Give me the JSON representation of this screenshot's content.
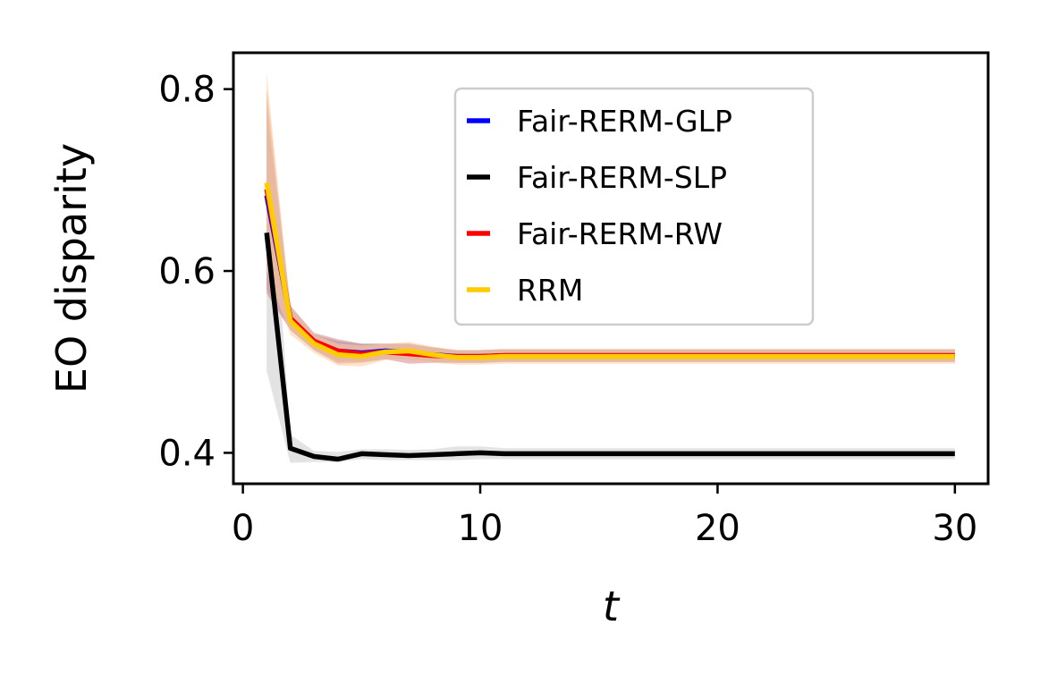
{
  "chart_data": {
    "type": "line",
    "title": "",
    "xlabel": "t",
    "ylabel": "EO disparity",
    "xlim": [
      -0.4,
      31.4
    ],
    "ylim": [
      0.366,
      0.84
    ],
    "xticks": [
      0,
      10,
      20,
      30
    ],
    "yticks": [
      0.4,
      0.6,
      0.8
    ],
    "xtick_labels": [
      "0",
      "10",
      "20",
      "30"
    ],
    "ytick_labels": [
      "0.4",
      "0.6",
      "0.8"
    ],
    "grid": false,
    "legend_position": "upper-right",
    "x": [
      1,
      2,
      3,
      4,
      5,
      6,
      7,
      8,
      9,
      10,
      11,
      12,
      13,
      14,
      15,
      16,
      17,
      18,
      19,
      20,
      21,
      22,
      23,
      24,
      25,
      26,
      27,
      28,
      29,
      30
    ],
    "series": [
      {
        "name": "Fair-RERM-GLP",
        "color": "#0000ff",
        "band_color": "#8a8ad6",
        "values": [
          0.683,
          0.548,
          0.522,
          0.512,
          0.51,
          0.512,
          0.511,
          0.508,
          0.506,
          0.506,
          0.507,
          0.507,
          0.507,
          0.507,
          0.507,
          0.507,
          0.507,
          0.507,
          0.507,
          0.507,
          0.507,
          0.507,
          0.507,
          0.507,
          0.507,
          0.507,
          0.507,
          0.507,
          0.507,
          0.507
        ],
        "lower": [
          0.58,
          0.535,
          0.513,
          0.5,
          0.5,
          0.503,
          0.503,
          0.5,
          0.499,
          0.499,
          0.5,
          0.5,
          0.5,
          0.5,
          0.5,
          0.5,
          0.5,
          0.5,
          0.5,
          0.5,
          0.5,
          0.5,
          0.5,
          0.5,
          0.5,
          0.5,
          0.5,
          0.5,
          0.5,
          0.5
        ],
        "upper": [
          0.78,
          0.56,
          0.53,
          0.523,
          0.52,
          0.52,
          0.52,
          0.516,
          0.513,
          0.513,
          0.514,
          0.514,
          0.514,
          0.514,
          0.514,
          0.514,
          0.514,
          0.514,
          0.514,
          0.514,
          0.514,
          0.514,
          0.514,
          0.514,
          0.514,
          0.514,
          0.514,
          0.514,
          0.514,
          0.514
        ]
      },
      {
        "name": "Fair-RERM-SLP",
        "color": "#000000",
        "band_color": "#cccccc",
        "values": [
          0.642,
          0.405,
          0.396,
          0.393,
          0.399,
          0.398,
          0.397,
          0.398,
          0.399,
          0.4,
          0.399,
          0.399,
          0.399,
          0.399,
          0.399,
          0.399,
          0.399,
          0.399,
          0.399,
          0.399,
          0.399,
          0.399,
          0.399,
          0.399,
          0.399,
          0.399,
          0.399,
          0.399,
          0.399,
          0.399
        ],
        "lower": [
          0.49,
          0.389,
          0.39,
          0.39,
          0.393,
          0.392,
          0.392,
          0.392,
          0.392,
          0.393,
          0.393,
          0.393,
          0.393,
          0.393,
          0.393,
          0.393,
          0.393,
          0.393,
          0.393,
          0.393,
          0.393,
          0.393,
          0.393,
          0.393,
          0.393,
          0.393,
          0.393,
          0.393,
          0.393,
          0.393
        ],
        "upper": [
          0.79,
          0.42,
          0.402,
          0.401,
          0.404,
          0.404,
          0.403,
          0.404,
          0.407,
          0.407,
          0.405,
          0.405,
          0.405,
          0.405,
          0.405,
          0.405,
          0.405,
          0.405,
          0.405,
          0.405,
          0.405,
          0.405,
          0.405,
          0.405,
          0.405,
          0.405,
          0.405,
          0.405,
          0.405,
          0.405
        ]
      },
      {
        "name": "Fair-RERM-RW",
        "color": "#ff0000",
        "band_color": "#d48b86",
        "values": [
          0.69,
          0.548,
          0.523,
          0.512,
          0.509,
          0.511,
          0.509,
          0.507,
          0.506,
          0.506,
          0.507,
          0.507,
          0.507,
          0.507,
          0.507,
          0.507,
          0.507,
          0.507,
          0.507,
          0.507,
          0.507,
          0.507,
          0.507,
          0.507,
          0.507,
          0.507,
          0.507,
          0.507,
          0.507,
          0.507
        ],
        "lower": [
          0.575,
          0.535,
          0.513,
          0.498,
          0.499,
          0.503,
          0.498,
          0.499,
          0.499,
          0.499,
          0.5,
          0.5,
          0.5,
          0.5,
          0.5,
          0.5,
          0.5,
          0.5,
          0.5,
          0.5,
          0.5,
          0.5,
          0.5,
          0.5,
          0.5,
          0.5,
          0.5,
          0.5,
          0.5,
          0.5
        ],
        "upper": [
          0.8,
          0.562,
          0.532,
          0.525,
          0.52,
          0.52,
          0.52,
          0.516,
          0.513,
          0.513,
          0.514,
          0.514,
          0.514,
          0.514,
          0.514,
          0.514,
          0.514,
          0.514,
          0.514,
          0.514,
          0.514,
          0.514,
          0.514,
          0.514,
          0.514,
          0.514,
          0.514,
          0.514,
          0.514,
          0.514
        ]
      },
      {
        "name": "RRM",
        "color": "#ffcc00",
        "band_color": "#ffcc99",
        "values": [
          0.697,
          0.545,
          0.52,
          0.508,
          0.506,
          0.511,
          0.512,
          0.508,
          0.505,
          0.505,
          0.506,
          0.506,
          0.506,
          0.506,
          0.506,
          0.506,
          0.506,
          0.506,
          0.506,
          0.506,
          0.506,
          0.506,
          0.506,
          0.506,
          0.506,
          0.506,
          0.506,
          0.506,
          0.506,
          0.506
        ],
        "lower": [
          0.6,
          0.53,
          0.51,
          0.496,
          0.495,
          0.502,
          0.503,
          0.499,
          0.497,
          0.497,
          0.498,
          0.498,
          0.498,
          0.498,
          0.498,
          0.498,
          0.498,
          0.498,
          0.498,
          0.498,
          0.498,
          0.498,
          0.498,
          0.498,
          0.498,
          0.498,
          0.498,
          0.498,
          0.498,
          0.498
        ],
        "upper": [
          0.818,
          0.56,
          0.53,
          0.52,
          0.518,
          0.52,
          0.522,
          0.517,
          0.513,
          0.513,
          0.514,
          0.514,
          0.514,
          0.514,
          0.514,
          0.514,
          0.514,
          0.514,
          0.514,
          0.514,
          0.514,
          0.514,
          0.514,
          0.514,
          0.514,
          0.514,
          0.514,
          0.514,
          0.514,
          0.514
        ]
      }
    ]
  }
}
